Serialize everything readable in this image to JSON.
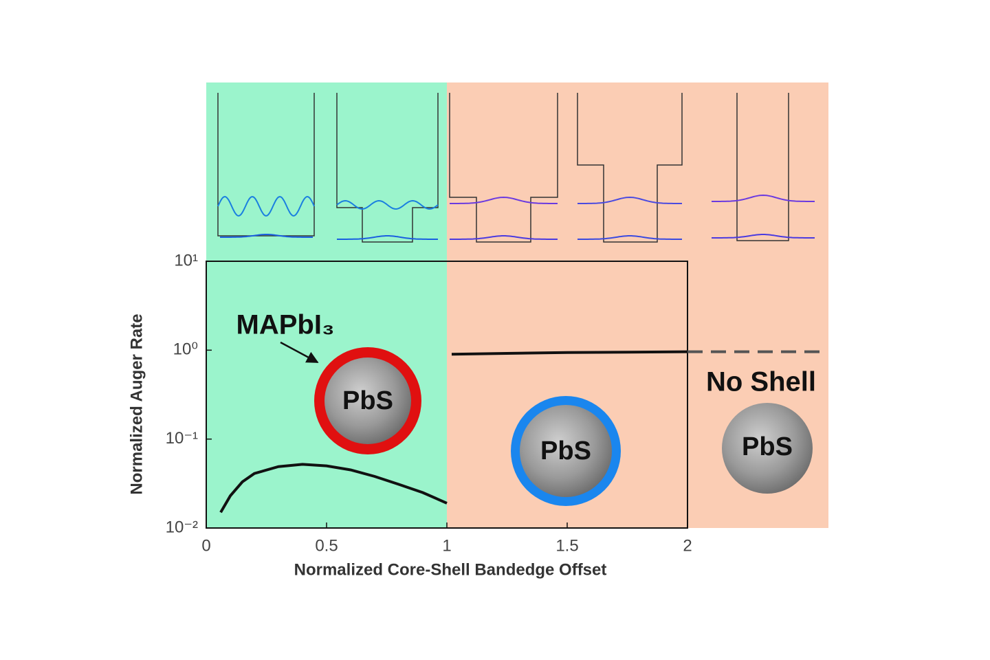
{
  "chart_data": {
    "type": "line",
    "x_label": "Normalized Core-Shell Bandedge Offset",
    "y_label": "Normalized Auger Rate",
    "xlim": [
      0,
      2
    ],
    "xticks": [
      0,
      0.5,
      1,
      1.5,
      2
    ],
    "ylim": [
      0.01,
      10
    ],
    "yticks": [
      {
        "value": 10,
        "label": "10¹"
      },
      {
        "value": 1,
        "label": "10⁰"
      },
      {
        "value": 0.1,
        "label": "10⁻¹"
      },
      {
        "value": 0.01,
        "label": "10⁻²"
      }
    ],
    "log_y": true,
    "series": [
      {
        "color": "#111111",
        "dash": false,
        "x": [
          0.06,
          0.1,
          0.15,
          0.2,
          0.3,
          0.4,
          0.5,
          0.6,
          0.7,
          0.8,
          0.9,
          1.0
        ],
        "values": [
          0.015,
          0.023,
          0.033,
          0.041,
          0.049,
          0.052,
          0.05,
          0.045,
          0.038,
          0.031,
          0.025,
          0.019
        ]
      },
      {
        "color": "#111111",
        "dash": false,
        "x": [
          1.02,
          1.25,
          1.5,
          1.75,
          2.0
        ],
        "values": [
          0.9,
          0.92,
          0.94,
          0.95,
          0.96
        ]
      },
      {
        "color": "#555555",
        "dash": true,
        "x": [
          2.0,
          2.56
        ],
        "values": [
          0.96,
          0.96
        ]
      }
    ],
    "annotations": [
      "MAPbI₃",
      "PbS",
      "PbS",
      "No Shell",
      "PbS"
    ]
  }
}
